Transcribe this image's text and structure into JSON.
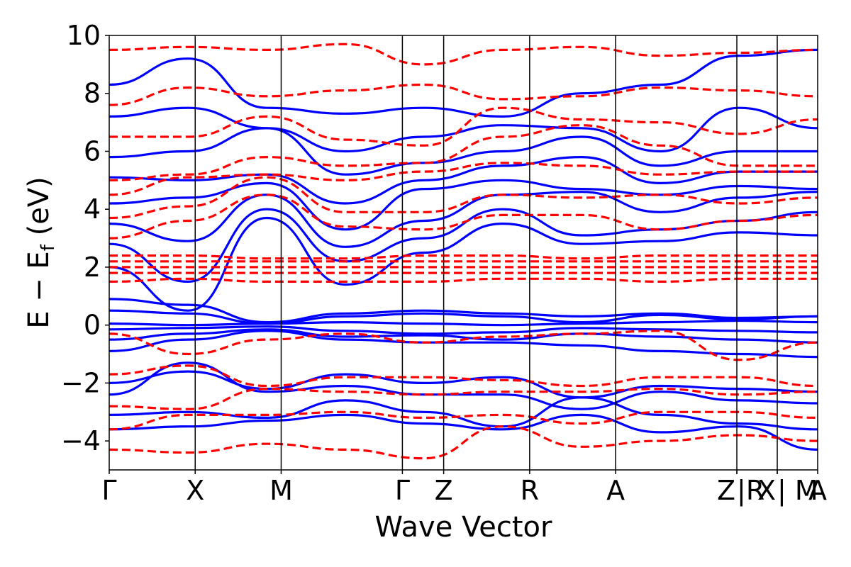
{
  "chart_data": {
    "type": "line",
    "title": "",
    "xlabel": "Wave Vector",
    "ylabel": {
      "main": "E − E",
      "sub": "f",
      "unit": " (eV)"
    },
    "ylim": [
      -5,
      10
    ],
    "yticks": [
      "10",
      "8",
      "6",
      "4",
      "2",
      "0",
      "−2",
      "−4"
    ],
    "ytick_values": [
      10,
      8,
      6,
      4,
      2,
      0,
      -2,
      -4
    ],
    "kpoints": [
      {
        "label": "Γ",
        "x": 0
      },
      {
        "label": "X",
        "x": 1
      },
      {
        "label": "M",
        "x": 2
      },
      {
        "label": "Γ",
        "x": 3.41
      },
      {
        "label": "Z",
        "x": 3.89
      },
      {
        "label": "R",
        "x": 4.89
      },
      {
        "label": "A",
        "x": 5.89
      },
      {
        "label": "Z",
        "x": 7.3
      },
      {
        "label": "|R",
        "x": 7.3
      },
      {
        "label": "X",
        "x": 7.77
      },
      {
        "label": "| M",
        "x": 7.77
      },
      {
        "label": "A",
        "x": 8.24
      }
    ],
    "series": [
      {
        "style": "solid",
        "color": "#0000ff",
        "bands": [
          [
            -0.15,
            -0.1,
            -0.05,
            -0.2,
            -0.3,
            -0.25,
            -0.1,
            -0.15,
            -0.2,
            -0.25
          ],
          [
            0.05,
            0.0,
            0.05,
            0.1,
            0.05,
            0.0,
            0.05,
            0.1,
            0.15,
            0.1
          ],
          [
            0.5,
            0.4,
            0.05,
            0.3,
            0.4,
            0.3,
            0.1,
            0.35,
            0.2,
            0.3
          ],
          [
            0.9,
            0.7,
            0.1,
            0.4,
            0.5,
            0.4,
            0.3,
            0.4,
            0.25,
            0.3
          ],
          [
            -0.5,
            -0.3,
            -0.15,
            -0.4,
            -0.35,
            -0.5,
            -0.3,
            -0.4,
            -0.5,
            -0.6
          ],
          [
            -0.9,
            -0.5,
            -0.2,
            -0.5,
            -0.6,
            -0.6,
            -0.7,
            -0.9,
            -1.0,
            -1.1
          ],
          [
            -2.0,
            -1.6,
            -2.2,
            -1.7,
            -2.0,
            -1.8,
            -2.5,
            -2.1,
            -2.2,
            -2.3
          ],
          [
            -2.4,
            -1.3,
            -2.3,
            -2.1,
            -2.4,
            -2.4,
            -2.9,
            -2.3,
            -2.6,
            -2.7
          ],
          [
            -3.1,
            -3.0,
            -3.2,
            -2.6,
            -3.0,
            -3.5,
            -2.5,
            -3.1,
            -3.4,
            -3.6
          ],
          [
            -3.6,
            -3.5,
            -3.3,
            -3.1,
            -3.4,
            -3.6,
            -3.1,
            -3.7,
            -3.5,
            -4.3
          ],
          [
            2.0,
            0.5,
            3.7,
            1.4,
            2.5,
            3.5,
            2.8,
            2.9,
            3.2,
            3.1
          ],
          [
            2.8,
            1.5,
            4.0,
            2.2,
            3.0,
            4.0,
            3.1,
            3.3,
            3.6,
            3.9
          ],
          [
            3.5,
            2.9,
            4.5,
            2.7,
            3.6,
            4.5,
            4.6,
            3.9,
            4.4,
            4.6
          ],
          [
            4.2,
            4.4,
            4.9,
            3.3,
            4.7,
            5.0,
            4.7,
            4.5,
            4.8,
            4.7
          ],
          [
            5.1,
            5.0,
            5.2,
            4.2,
            5.0,
            5.5,
            5.8,
            4.9,
            5.3,
            5.3
          ],
          [
            5.8,
            6.0,
            6.8,
            5.2,
            5.6,
            6.0,
            6.5,
            5.5,
            6.0,
            6.0
          ],
          [
            7.2,
            7.5,
            6.8,
            6.0,
            6.5,
            6.9,
            6.8,
            6.0,
            7.5,
            6.8
          ],
          [
            8.3,
            9.2,
            7.5,
            7.3,
            7.5,
            7.2,
            8.0,
            8.3,
            9.3,
            9.5
          ]
        ]
      },
      {
        "style": "dashed",
        "color": "#ff0000",
        "bands": [
          [
            1.5,
            1.6,
            1.5,
            1.5,
            1.5,
            1.6,
            1.6,
            1.5,
            1.6,
            1.6
          ],
          [
            1.8,
            1.8,
            1.8,
            1.8,
            1.8,
            1.8,
            1.8,
            1.8,
            1.8,
            1.8
          ],
          [
            2.0,
            2.0,
            2.0,
            2.0,
            2.0,
            2.0,
            2.0,
            2.0,
            2.0,
            2.0
          ],
          [
            2.2,
            2.2,
            2.2,
            2.2,
            2.2,
            2.2,
            2.2,
            2.2,
            2.2,
            2.2
          ],
          [
            2.4,
            2.4,
            2.3,
            2.3,
            2.4,
            2.4,
            2.3,
            2.4,
            2.4,
            2.4
          ],
          [
            -0.3,
            -1.0,
            -0.5,
            -0.3,
            -0.6,
            -0.4,
            -0.3,
            -0.2,
            -1.2,
            -0.6
          ],
          [
            -1.7,
            -1.4,
            -2.1,
            -1.8,
            -1.8,
            -1.9,
            -2.1,
            -1.8,
            -1.8,
            -2.1
          ],
          [
            -2.8,
            -2.9,
            -2.2,
            -2.3,
            -2.4,
            -2.3,
            -2.3,
            -2.2,
            -2.4,
            -2.3
          ],
          [
            -3.6,
            -3.1,
            -3.1,
            -3.0,
            -3.2,
            -3.1,
            -3.4,
            -3.0,
            -3.0,
            -3.2
          ],
          [
            -4.3,
            -4.4,
            -4.1,
            -4.3,
            -4.6,
            -3.5,
            -4.2,
            -4.0,
            -3.8,
            -4.0
          ],
          [
            3.0,
            3.6,
            4.5,
            3.4,
            3.3,
            3.8,
            3.8,
            3.3,
            3.6,
            3.8
          ],
          [
            3.7,
            4.1,
            5.1,
            3.9,
            3.9,
            4.5,
            4.4,
            4.5,
            4.2,
            4.4
          ],
          [
            4.5,
            5.1,
            5.2,
            5.0,
            5.3,
            5.6,
            5.5,
            5.2,
            5.3,
            5.3
          ],
          [
            5.0,
            5.2,
            5.8,
            5.5,
            5.6,
            6.5,
            6.9,
            6.2,
            5.5,
            5.5
          ],
          [
            6.5,
            6.5,
            7.2,
            6.4,
            6.2,
            7.5,
            7.1,
            7.0,
            6.6,
            7.1
          ],
          [
            7.6,
            8.2,
            7.9,
            8.1,
            8.3,
            7.8,
            7.9,
            8.2,
            8.1,
            7.9
          ],
          [
            9.5,
            9.6,
            9.5,
            9.7,
            9.0,
            9.5,
            9.6,
            9.3,
            9.4,
            9.5
          ]
        ]
      }
    ],
    "grid": false,
    "legend": "none"
  }
}
